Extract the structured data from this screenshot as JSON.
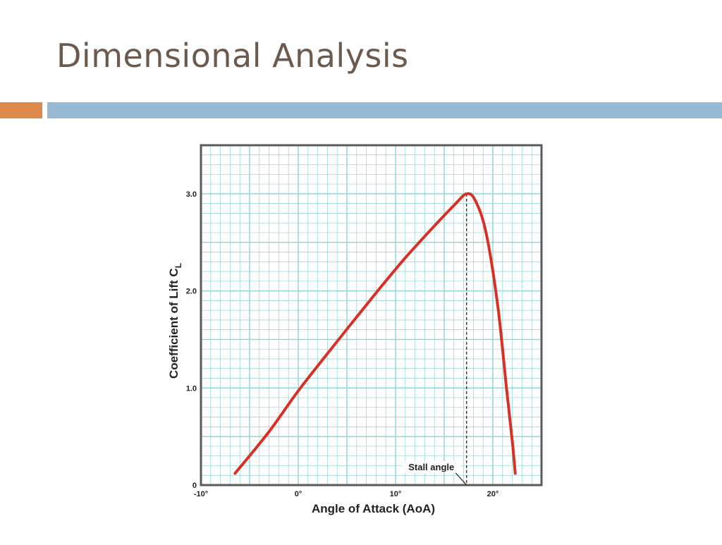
{
  "slide": {
    "title": "Dimensional Analysis",
    "accent_left_color": "#dd8a4a",
    "accent_right_color": "#98b9d4",
    "title_color": "#6b5a4d"
  },
  "chart_data": {
    "type": "line",
    "title": "",
    "xlabel": "Angle of Attack (AoA)",
    "ylabel": "Coefficient of Lift C",
    "ylabel_subscript": "L",
    "xlim": [
      -10,
      25
    ],
    "ylim": [
      0,
      3.5
    ],
    "x_ticks": [
      -10,
      0,
      10,
      20
    ],
    "x_tick_labels": [
      "-10°",
      "0°",
      "10°",
      "20°"
    ],
    "y_ticks": [
      0,
      1.0,
      2.0,
      3.0
    ],
    "y_tick_labels": [
      "0",
      "1.0",
      "2.0",
      "3.0"
    ],
    "grid": true,
    "grid_color": "#8fd3d3",
    "line_color": "#d93025",
    "series": [
      {
        "x": [
          -6.5,
          -3,
          0,
          4,
          8,
          11,
          14,
          16,
          17.3,
          18.2,
          19.3,
          20.5,
          21.4,
          22.0,
          22.3
        ],
        "y": [
          0.12,
          0.55,
          0.97,
          1.48,
          1.98,
          2.34,
          2.67,
          2.88,
          3.0,
          2.93,
          2.6,
          1.85,
          1.0,
          0.45,
          0.12
        ]
      }
    ],
    "annotation": {
      "label": "Stall angle",
      "x": 17.3,
      "y": 3.0
    }
  }
}
